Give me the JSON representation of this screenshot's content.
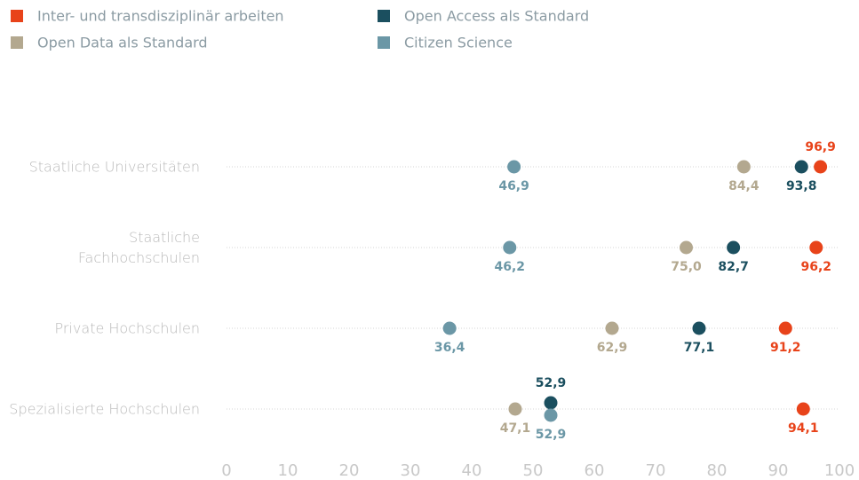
{
  "chart_data": {
    "type": "dot",
    "categories": [
      "Staatliche Universitäten",
      "Staatliche Fachhochschulen",
      "Private Hochschulen",
      "Spezialisierte Hochschulen"
    ],
    "series": [
      {
        "name": "Inter- und transdisziplinär arbeiten",
        "color": "#e8431a",
        "values": [
          96.9,
          96.2,
          91.2,
          94.1
        ],
        "value_labels": [
          "96,9",
          "96,2",
          "91,2",
          "94,1"
        ]
      },
      {
        "name": "Open Access als Standard",
        "color": "#1b4f5f",
        "values": [
          93.8,
          82.7,
          77.1,
          52.9
        ],
        "value_labels": [
          "93,8",
          "82,7",
          "77,1",
          "52,9"
        ]
      },
      {
        "name": "Open Data als Standard",
        "color": "#b3a88f",
        "values": [
          84.4,
          75.0,
          62.9,
          47.1
        ],
        "value_labels": [
          "84,4",
          "75,0",
          "62,9",
          "47,1"
        ]
      },
      {
        "name": "Citizen Science",
        "color": "#6b97a6",
        "values": [
          46.9,
          46.2,
          36.4,
          52.9
        ],
        "value_labels": [
          "46,9",
          "46,2",
          "36,4",
          "52,9"
        ]
      }
    ],
    "xlim": [
      0,
      100
    ],
    "xticks": [
      0,
      10,
      20,
      30,
      40,
      50,
      60,
      70,
      80,
      90,
      100
    ]
  }
}
